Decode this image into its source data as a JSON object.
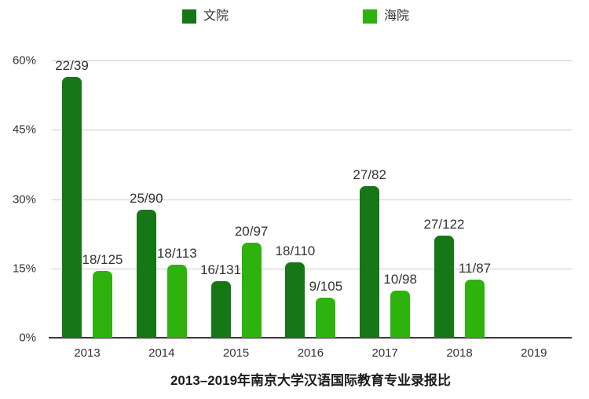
{
  "chart_data": {
    "type": "bar",
    "title": "2013–2019年南京大学汉语国际教育专业录报比",
    "categories": [
      "2013",
      "2014",
      "2015",
      "2016",
      "2017",
      "2018",
      "2019"
    ],
    "series": [
      {
        "name": "文院",
        "color": "#167716",
        "labels": [
          "22/39",
          "25/90",
          "16/131",
          "18/110",
          "27/82",
          "27/122",
          ""
        ],
        "values_pct": [
          56.4,
          27.8,
          12.2,
          16.4,
          32.9,
          22.1,
          null
        ]
      },
      {
        "name": "海院",
        "color": "#2eb20e",
        "labels": [
          "18/125",
          "18/113",
          "20/97",
          "9/105",
          "10/98",
          "11/87",
          ""
        ],
        "values_pct": [
          14.4,
          15.9,
          20.6,
          8.6,
          10.2,
          12.6,
          null
        ]
      }
    ],
    "y_axis": {
      "min": 0,
      "max": 60,
      "ticks": [
        {
          "label": "60%",
          "value": 60
        },
        {
          "label": "45%",
          "value": 45
        },
        {
          "label": "30%",
          "value": 30
        },
        {
          "label": "15%",
          "value": 15
        },
        {
          "label": "0%",
          "value": 0
        }
      ]
    },
    "grid": true,
    "legend_position": "top",
    "xlabel": "",
    "ylabel": ""
  }
}
